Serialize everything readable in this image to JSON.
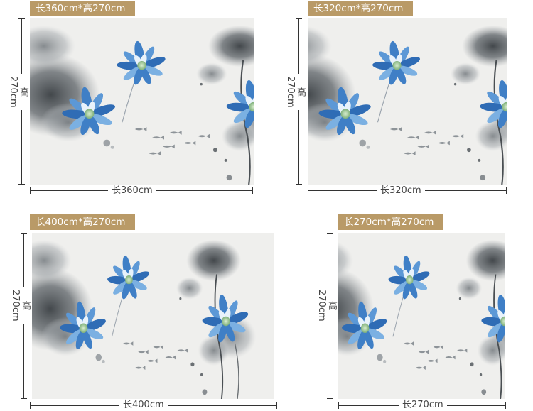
{
  "panels": [
    {
      "tag": "长360cm*高270cm",
      "height_label": "高270cm",
      "width_label": "长360cm"
    },
    {
      "tag": "长320cm*高270cm",
      "height_label": "高270cm",
      "width_label": "长320cm"
    },
    {
      "tag": "长400cm*高270cm",
      "height_label": "高270cm",
      "width_label": "长400cm"
    },
    {
      "tag": "长270cm*高270cm",
      "height_label": "高270cm",
      "width_label": "长270cm"
    }
  ],
  "colors": {
    "tag_background": "#b99a67",
    "wall_background": "#efefed",
    "ink_dark": "#3d4246",
    "lotus_blue": "#3f7fc6"
  },
  "artwork": {
    "subject": "ink-wash lotus mural",
    "icons": [
      "blue-lotus-icon",
      "ink-lotus-leaf-icon",
      "fish-sketch-icon"
    ]
  }
}
